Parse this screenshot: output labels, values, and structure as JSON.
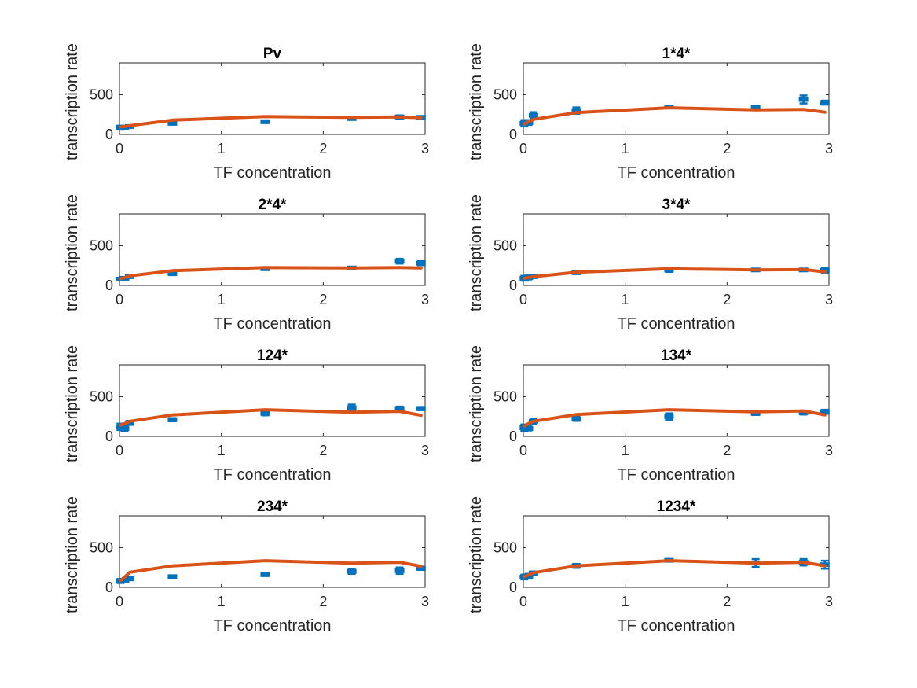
{
  "figure": {
    "panels": [
      "Pv",
      "1*4*",
      "2*4*",
      "3*4*",
      "124*",
      "134*",
      "234*",
      "1234*"
    ],
    "xlabel": "TF concentration",
    "ylabel": "transcription rate"
  },
  "colors": {
    "data": "#0072BD",
    "model": "#D95319",
    "axes": "#262626"
  },
  "chart_data": [
    {
      "type": "scatter",
      "title": "Pv",
      "xlabel": "TF concentration",
      "ylabel": "transcription rate",
      "xlim": [
        0,
        3
      ],
      "ylim": [
        0,
        900
      ],
      "xticks": [
        "0",
        "1",
        "2",
        "3"
      ],
      "yticks": [
        "0",
        "500"
      ],
      "series": [
        {
          "x": [
            0.01,
            0.05,
            0.1,
            0.52,
            1.43,
            2.28,
            2.75,
            2.96
          ],
          "y": [
            90,
            90,
            100,
            140,
            160,
            200,
            220,
            215
          ],
          "err": [
            20,
            15,
            10,
            15,
            15,
            15,
            20,
            15
          ]
        },
        {
          "x": [
            0.01,
            0.05,
            0.1,
            0.52,
            1.43,
            2.28,
            2.75,
            2.96
          ],
          "y": [
            95,
            100,
            110,
            180,
            225,
            215,
            220,
            210
          ]
        }
      ]
    },
    {
      "type": "scatter",
      "title": "1*4*",
      "xlabel": "TF concentration",
      "ylabel": "transcription rate",
      "xlim": [
        0,
        3
      ],
      "ylim": [
        0,
        900
      ],
      "xticks": [
        "0",
        "1",
        "2",
        "3"
      ],
      "yticks": [
        "0",
        "500"
      ],
      "series": [
        {
          "x": [
            0.01,
            0.05,
            0.1,
            0.52,
            1.43,
            2.28,
            2.75,
            2.96
          ],
          "y": [
            140,
            150,
            240,
            300,
            345,
            340,
            440,
            400
          ],
          "err": [
            40,
            30,
            40,
            40,
            15,
            20,
            50,
            25
          ]
        },
        {
          "x": [
            0.01,
            0.05,
            0.1,
            0.52,
            1.43,
            2.28,
            2.75,
            2.96
          ],
          "y": [
            130,
            160,
            190,
            275,
            335,
            310,
            315,
            280
          ]
        }
      ]
    },
    {
      "type": "scatter",
      "title": "2*4*",
      "xlabel": "TF concentration",
      "ylabel": "transcription rate",
      "xlim": [
        0,
        3
      ],
      "ylim": [
        0,
        900
      ],
      "xticks": [
        "0",
        "1",
        "2",
        "3"
      ],
      "yticks": [
        "0",
        "500"
      ],
      "series": [
        {
          "x": [
            0.01,
            0.05,
            0.1,
            0.52,
            1.43,
            2.28,
            2.75,
            2.96
          ],
          "y": [
            80,
            90,
            110,
            150,
            210,
            220,
            305,
            280
          ],
          "err": [
            15,
            15,
            10,
            20,
            15,
            10,
            30,
            25
          ]
        },
        {
          "x": [
            0.01,
            0.05,
            0.1,
            0.52,
            1.43,
            2.28,
            2.75,
            2.96
          ],
          "y": [
            85,
            100,
            120,
            185,
            225,
            220,
            225,
            220
          ]
        }
      ]
    },
    {
      "type": "scatter",
      "title": "3*4*",
      "xlabel": "TF concentration",
      "ylabel": "transcription rate",
      "xlim": [
        0,
        3
      ],
      "ylim": [
        0,
        900
      ],
      "xticks": [
        "0",
        "1",
        "2",
        "3"
      ],
      "yticks": [
        "0",
        "500"
      ],
      "series": [
        {
          "x": [
            0.01,
            0.05,
            0.1,
            0.52,
            1.43,
            2.28,
            2.75,
            2.96
          ],
          "y": [
            90,
            100,
            110,
            160,
            195,
            195,
            195,
            190
          ],
          "err": [
            30,
            25,
            15,
            15,
            25,
            10,
            15,
            30
          ]
        },
        {
          "x": [
            0.01,
            0.05,
            0.1,
            0.52,
            1.43,
            2.28,
            2.75,
            2.96
          ],
          "y": [
            90,
            100,
            110,
            165,
            210,
            195,
            200,
            170
          ]
        }
      ]
    },
    {
      "type": "scatter",
      "title": "124*",
      "xlabel": "TF concentration",
      "ylabel": "transcription rate",
      "xlim": [
        0,
        3
      ],
      "ylim": [
        0,
        900
      ],
      "xticks": [
        "0",
        "1",
        "2",
        "3"
      ],
      "yticks": [
        "0",
        "500"
      ],
      "series": [
        {
          "x": [
            0.01,
            0.05,
            0.1,
            0.52,
            1.43,
            2.28,
            2.75,
            2.96
          ],
          "y": [
            120,
            100,
            170,
            210,
            290,
            360,
            350,
            350
          ],
          "err": [
            40,
            30,
            25,
            20,
            25,
            40,
            25,
            20
          ]
        },
        {
          "x": [
            0.01,
            0.05,
            0.1,
            0.52,
            1.43,
            2.28,
            2.75,
            2.96
          ],
          "y": [
            140,
            160,
            190,
            270,
            335,
            305,
            315,
            265
          ]
        }
      ]
    },
    {
      "type": "scatter",
      "title": "134*",
      "xlabel": "TF concentration",
      "ylabel": "transcription rate",
      "xlim": [
        0,
        3
      ],
      "ylim": [
        0,
        900
      ],
      "xticks": [
        "0",
        "1",
        "2",
        "3"
      ],
      "yticks": [
        "0",
        "500"
      ],
      "series": [
        {
          "x": [
            0.01,
            0.05,
            0.1,
            0.52,
            1.43,
            2.28,
            2.75,
            2.96
          ],
          "y": [
            110,
            100,
            190,
            220,
            250,
            290,
            300,
            310
          ],
          "err": [
            40,
            25,
            30,
            25,
            40,
            20,
            25,
            25
          ]
        },
        {
          "x": [
            0.01,
            0.05,
            0.1,
            0.52,
            1.43,
            2.28,
            2.75,
            2.96
          ],
          "y": [
            130,
            160,
            190,
            275,
            335,
            310,
            320,
            270
          ]
        }
      ]
    },
    {
      "type": "scatter",
      "title": "234*",
      "xlabel": "TF concentration",
      "ylabel": "transcription rate",
      "xlim": [
        0,
        3
      ],
      "ylim": [
        0,
        900
      ],
      "xticks": [
        "0",
        "1",
        "2",
        "3"
      ],
      "yticks": [
        "0",
        "500"
      ],
      "series": [
        {
          "x": [
            0.01,
            0.05,
            0.1,
            0.52,
            1.43,
            2.28,
            2.75,
            2.96
          ],
          "y": [
            80,
            90,
            110,
            135,
            160,
            200,
            210,
            240
          ],
          "err": [
            25,
            15,
            20,
            15,
            15,
            30,
            40,
            20
          ]
        },
        {
          "x": [
            0.01,
            0.05,
            0.1,
            0.52,
            1.43,
            2.28,
            2.75,
            2.96
          ],
          "y": [
            85,
            130,
            190,
            270,
            335,
            305,
            315,
            265
          ]
        }
      ]
    },
    {
      "type": "scatter",
      "title": "1234*",
      "xlabel": "TF concentration",
      "ylabel": "transcription rate",
      "xlim": [
        0,
        3
      ],
      "ylim": [
        0,
        900
      ],
      "xticks": [
        "0",
        "1",
        "2",
        "3"
      ],
      "yticks": [
        "0",
        "500"
      ],
      "series": [
        {
          "x": [
            0.01,
            0.05,
            0.1,
            0.52,
            1.43,
            2.28,
            2.75,
            2.96
          ],
          "y": [
            130,
            140,
            180,
            270,
            340,
            305,
            315,
            285
          ],
          "err": [
            30,
            30,
            20,
            25,
            15,
            50,
            40,
            50
          ]
        },
        {
          "x": [
            0.01,
            0.05,
            0.1,
            0.52,
            1.43,
            2.28,
            2.75,
            2.96
          ],
          "y": [
            135,
            155,
            185,
            270,
            335,
            305,
            315,
            270
          ]
        }
      ]
    }
  ]
}
